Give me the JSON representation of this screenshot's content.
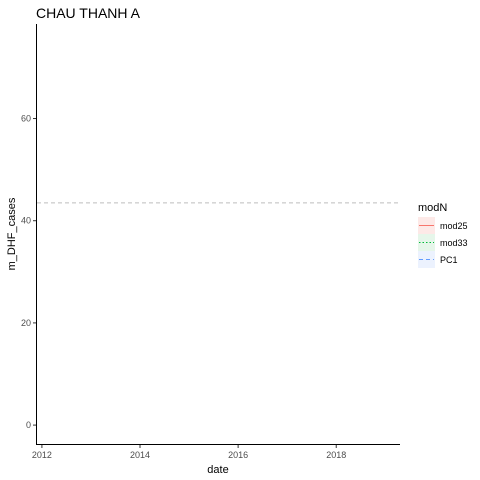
{
  "chart_data": {
    "type": "line",
    "title": "CHAU THANH A",
    "xlabel": "date",
    "ylabel": "m_DHF_cases",
    "xlim": [
      2011.9,
      2019.3
    ],
    "ylim": [
      -3.7,
      78.5
    ],
    "x_ticks": [
      2012,
      2014,
      2016,
      2018
    ],
    "y_ticks": [
      0,
      20,
      40,
      60
    ],
    "grid": false,
    "legend": {
      "title": "modN",
      "placement": "right",
      "entries": [
        {
          "name": "mod25",
          "color": "#F8766D",
          "linestyle": "solid",
          "fill": "#fde9e7"
        },
        {
          "name": "mod33",
          "color": "#00BA38",
          "linestyle": "dotted",
          "fill": "#e6f6ea"
        },
        {
          "name": "PC1",
          "color": "#619CFF",
          "linestyle": "dashed",
          "fill": "#ecf2fe"
        }
      ]
    },
    "reference_lines": [
      {
        "y": 43.5,
        "color": "#bdbdbd",
        "linestyle": "dashed"
      }
    ],
    "series": [
      {
        "name": "mod25",
        "values": []
      },
      {
        "name": "mod33",
        "values": []
      },
      {
        "name": "PC1",
        "values": []
      }
    ]
  }
}
